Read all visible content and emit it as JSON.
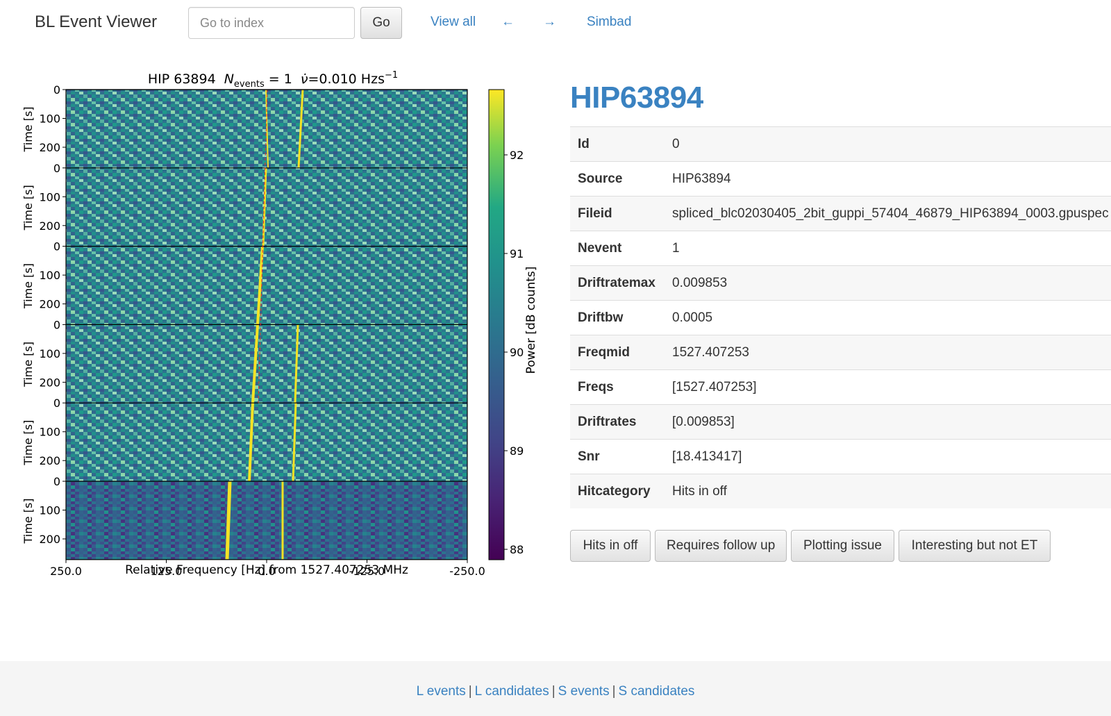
{
  "navbar": {
    "brand": "BL Event Viewer",
    "index_placeholder": "Go to index",
    "go_label": "Go",
    "view_all": "View all",
    "prev_arrow": "←",
    "next_arrow": "→",
    "simbad": "Simbad"
  },
  "plot": {
    "title_source": "HIP 63894",
    "title_n_label": "N",
    "title_n_sub": "events",
    "title_n_value": " = 1",
    "title_rate_symbol": "ν̇",
    "title_rate_value": "=0.010 Hzs",
    "title_rate_exp": "−1",
    "y_label": "Time [s]",
    "y_ticks": [
      "0",
      "100",
      "200"
    ],
    "x_ticks": [
      "250.0",
      "125.0",
      "0.0",
      "-125.0",
      "-250.0"
    ],
    "x_label": "Relative Frequency [Hz] from 1527.407253 MHz",
    "colorbar_label": "Power [dB counts]",
    "colorbar_ticks": [
      "92",
      "91",
      "90",
      "89",
      "88"
    ],
    "panel_count": 6
  },
  "detail": {
    "title": "HIP63894",
    "rows": [
      {
        "key": "Id",
        "value": "0"
      },
      {
        "key": "Source",
        "value": "HIP63894"
      },
      {
        "key": "Fileid",
        "value": "spliced_blc02030405_2bit_guppi_57404_46879_HIP63894_0003.gpuspec"
      },
      {
        "key": "Nevent",
        "value": "1"
      },
      {
        "key": "Driftratemax",
        "value": "0.009853"
      },
      {
        "key": "Driftbw",
        "value": "0.0005"
      },
      {
        "key": "Freqmid",
        "value": "1527.407253"
      },
      {
        "key": "Freqs",
        "value": "[1527.407253]"
      },
      {
        "key": "Driftrates",
        "value": "[0.009853]"
      },
      {
        "key": "Snr",
        "value": "[18.413417]"
      },
      {
        "key": "Hitcategory",
        "value": "Hits in off"
      }
    ],
    "buttons": [
      "Hits in off",
      "Requires follow up",
      "Plotting issue",
      "Interesting but not ET"
    ]
  },
  "footer": {
    "links": [
      "L events",
      "L candidates",
      "S events",
      "S candidates"
    ],
    "separator": "|"
  },
  "colors": {
    "link": "#3a82c1",
    "footer_bg": "#f5f5f5",
    "viridis_low": "#440154",
    "viridis_high": "#fde725"
  }
}
